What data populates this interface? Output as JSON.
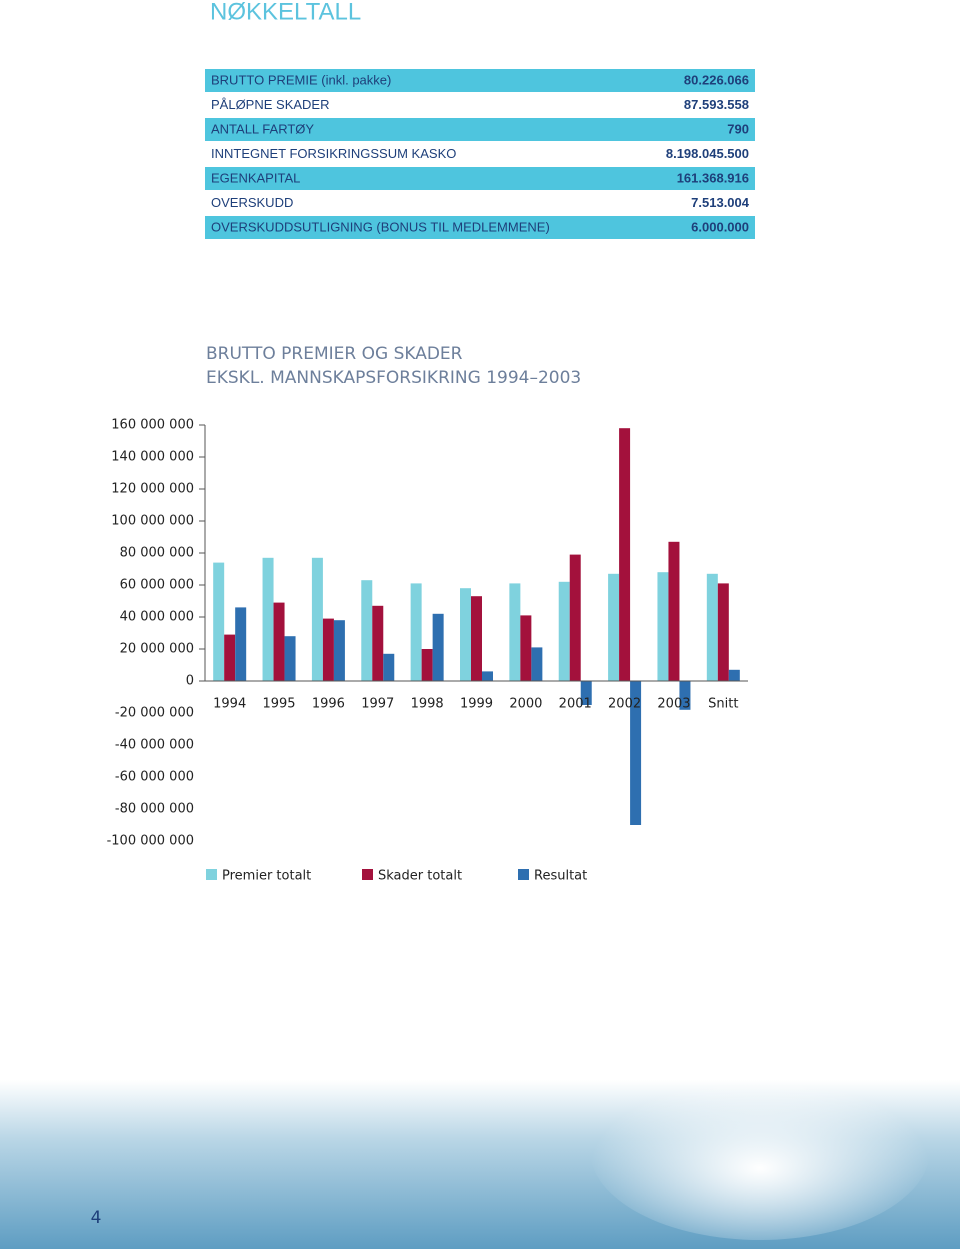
{
  "header": {
    "title": "NØKKELTALL"
  },
  "table": {
    "rows": [
      [
        "BRUTTO PREMIE (inkl. pakke)",
        "80.226.066"
      ],
      [
        "PÅLØPNE SKADER",
        "87.593.558"
      ],
      [
        "ANTALL FARTØY",
        "790"
      ],
      [
        "INNTEGNET FORSIKRINGSSUM KASKO",
        "8.198.045.500"
      ],
      [
        "EGENKAPITAL",
        "161.368.916"
      ],
      [
        "OVERSKUDD",
        "7.513.004"
      ],
      [
        "OVERSKUDDSUTLIGNING (BONUS TIL MEDLEMMENE)",
        "6.000.000"
      ]
    ]
  },
  "chart_data": {
    "type": "bar",
    "title": "BRUTTO PREMIER OG SKADER",
    "subtitle": "EKSKL. MANNSKAPSFORSIKRING 1994–2003",
    "categories": [
      "1994",
      "1995",
      "1996",
      "1997",
      "1998",
      "1999",
      "2000",
      "2001",
      "2002",
      "2003",
      "Snitt"
    ],
    "series": [
      {
        "name": "Premier totalt",
        "color": "#7fd2de",
        "values": [
          74000000,
          77000000,
          77000000,
          63000000,
          61000000,
          58000000,
          61000000,
          62000000,
          67000000,
          68000000,
          67000000
        ]
      },
      {
        "name": "Skader totalt",
        "color": "#a3113c",
        "values": [
          29000000,
          49000000,
          39000000,
          47000000,
          20000000,
          53000000,
          41000000,
          79000000,
          158000000,
          87000000,
          61000000
        ]
      },
      {
        "name": "Resultat",
        "color": "#2e6fb0",
        "values": [
          46000000,
          28000000,
          38000000,
          17000000,
          42000000,
          6000000,
          21000000,
          -15000000,
          -90000000,
          -18000000,
          7000000
        ]
      }
    ],
    "ylim": [
      -100000000,
      160000000
    ],
    "yticks": [
      {
        "value": -100000000,
        "label": "-100 000 000"
      },
      {
        "value": -80000000,
        "label": "-80 000 000"
      },
      {
        "value": -60000000,
        "label": "-60 000 000"
      },
      {
        "value": -40000000,
        "label": "-40 000 000"
      },
      {
        "value": -20000000,
        "label": "-20 000 000"
      },
      0,
      {
        "value": 20000000,
        "label": "20 000 000"
      },
      {
        "value": 40000000,
        "label": "40 000 000"
      },
      {
        "value": 60000000,
        "label": "60 000 000"
      },
      {
        "value": 80000000,
        "label": "80 000 000"
      },
      {
        "value": 100000000,
        "label": "100 000 000"
      },
      {
        "value": 120000000,
        "label": "120 000 000"
      },
      {
        "value": 140000000,
        "label": "140 000 000"
      },
      {
        "value": 160000000,
        "label": "160 000 000"
      }
    ],
    "legend": "bottom"
  },
  "footer": {
    "page_number": "4"
  }
}
